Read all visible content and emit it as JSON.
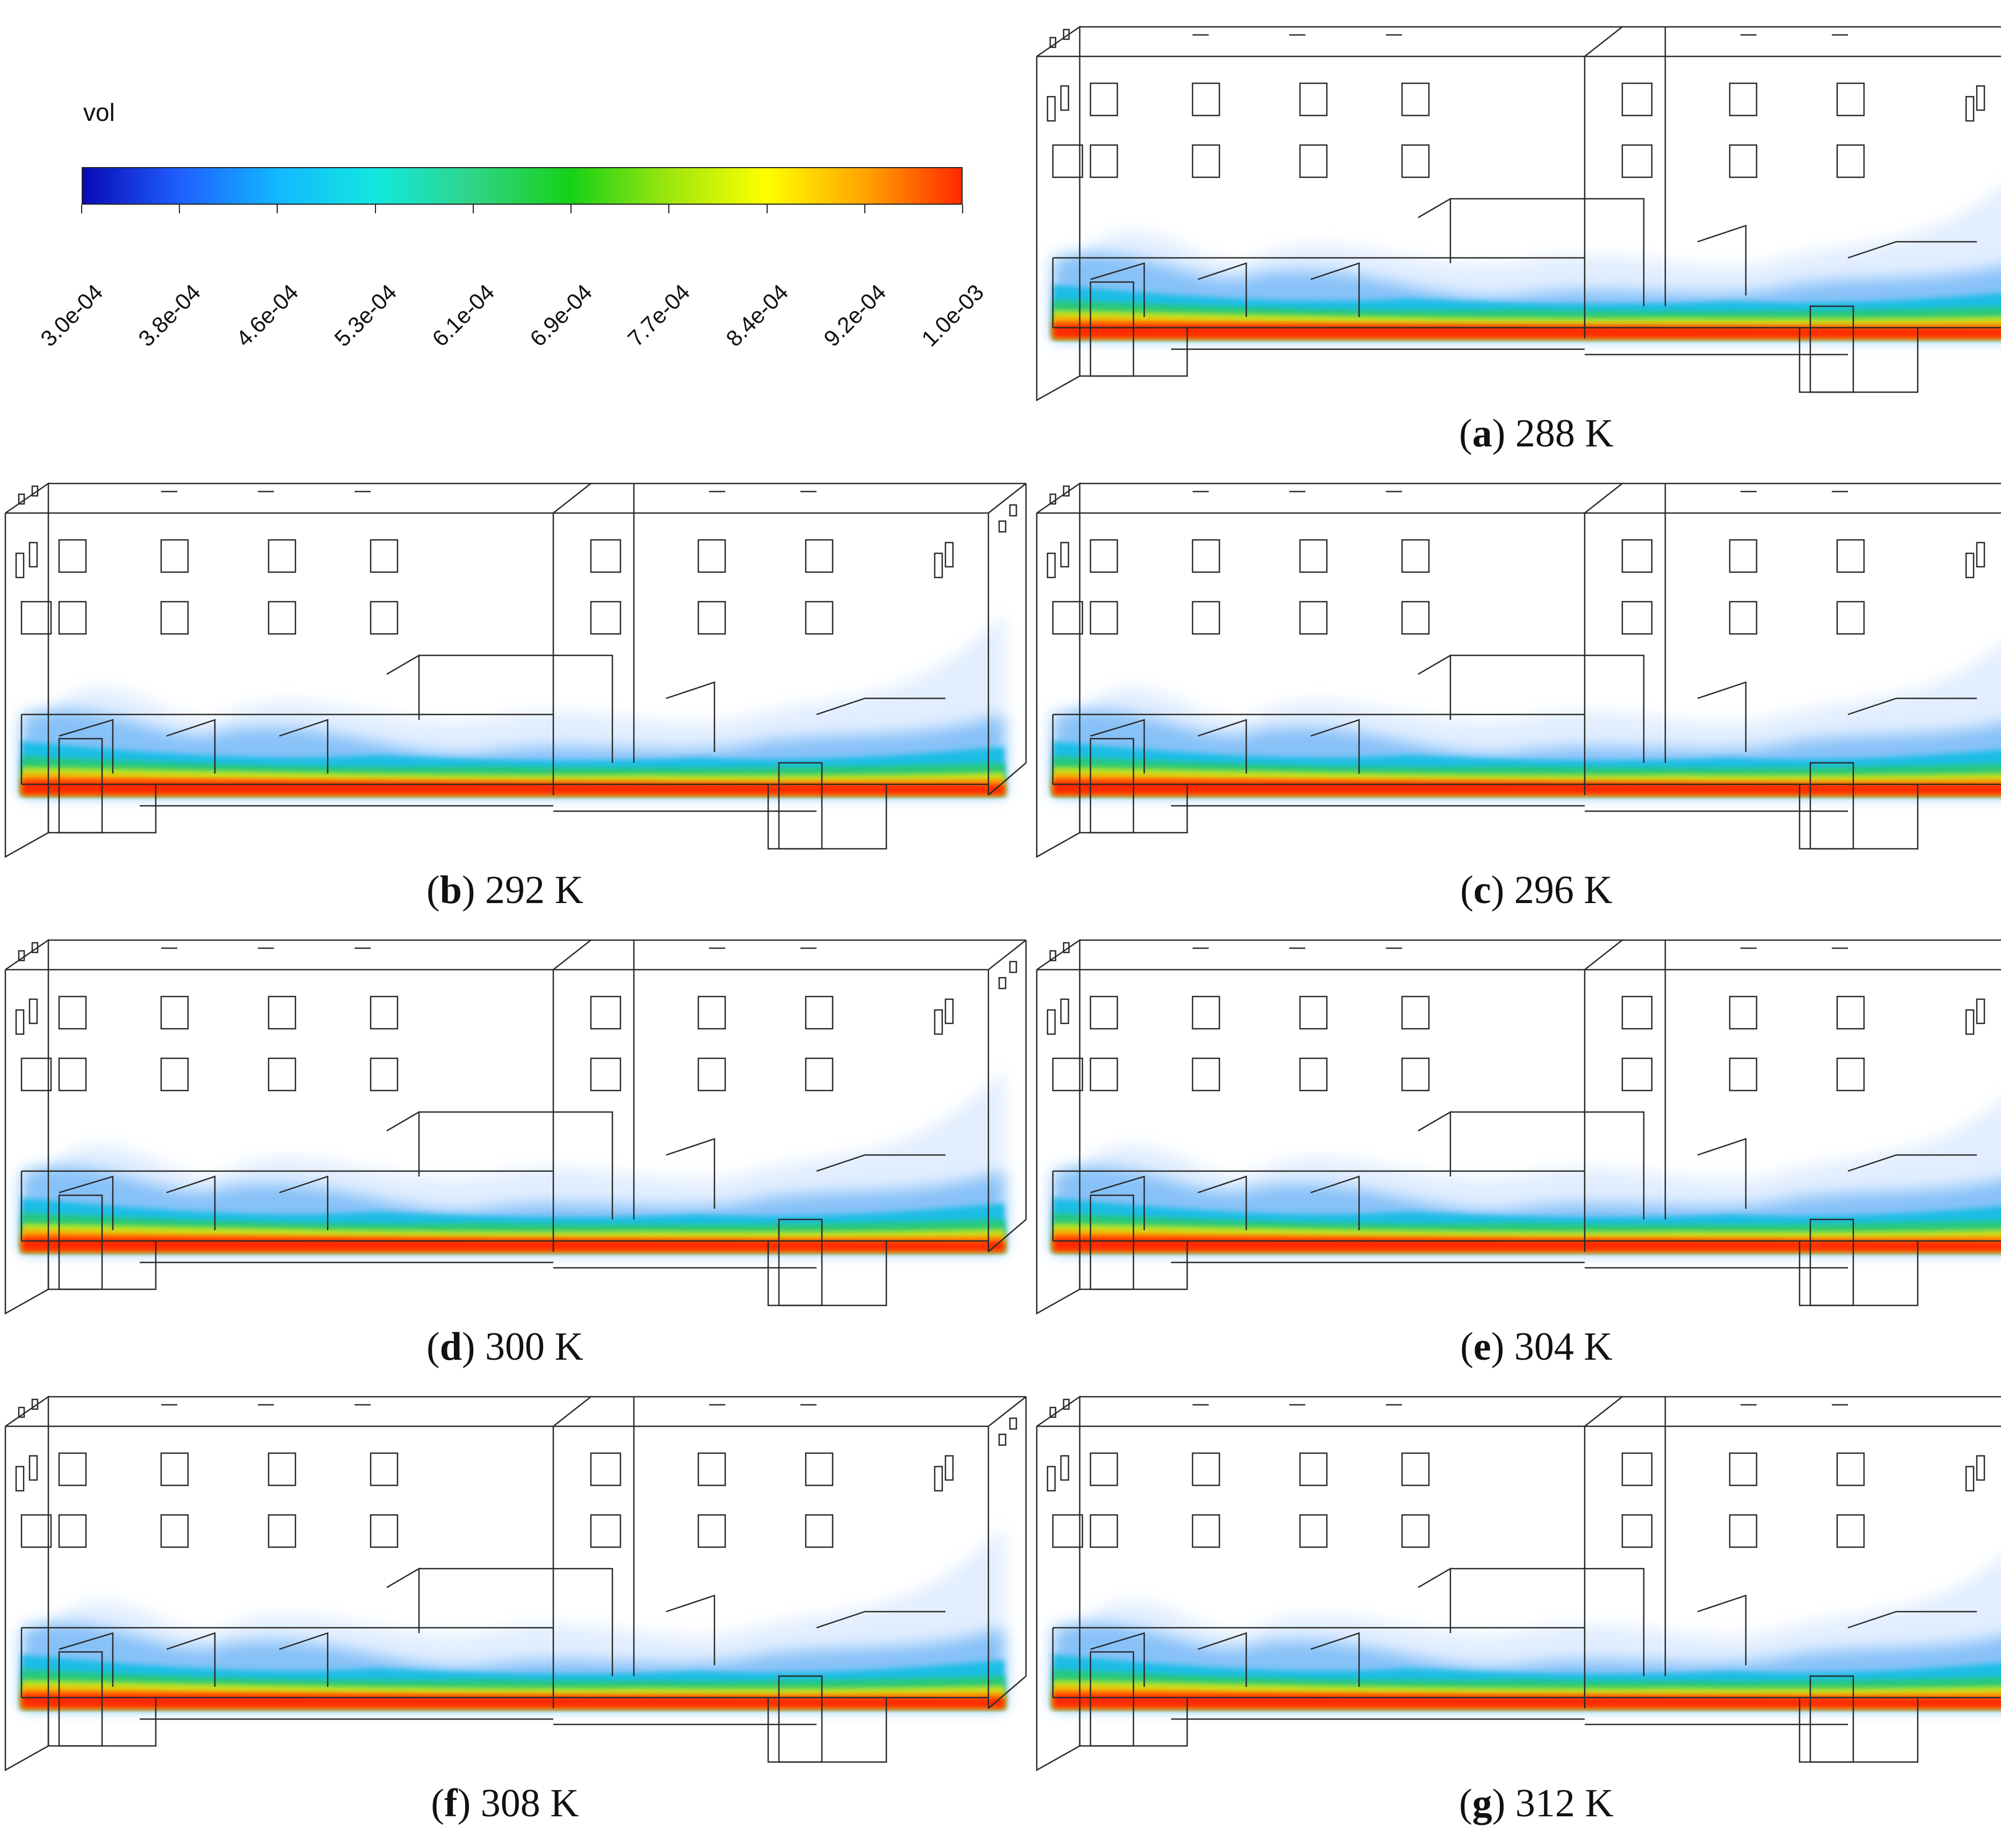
{
  "legend": {
    "title": "vol",
    "ticks": [
      "3.0e-04",
      "3.8e-04",
      "4.6e-04",
      "5.3e-04",
      "6.1e-04",
      "6.9e-04",
      "7.7e-04",
      "8.4e-04",
      "9.2e-04",
      "1.0e-03"
    ],
    "colors": [
      "#0a0ab5",
      "#1f5fff",
      "#12b8ff",
      "#12e8e0",
      "#2fd486",
      "#16d116",
      "#9de60f",
      "#ffff00",
      "#ffa500",
      "#ff2a00"
    ]
  },
  "panels": [
    {
      "letter": "a",
      "label": "288 K"
    },
    {
      "letter": "b",
      "label": "292 K"
    },
    {
      "letter": "c",
      "label": "296 K"
    },
    {
      "letter": "d",
      "label": "300 K"
    },
    {
      "letter": "e",
      "label": "304 K"
    },
    {
      "letter": "f",
      "label": "308 K"
    },
    {
      "letter": "g",
      "label": "312 K"
    }
  ]
}
